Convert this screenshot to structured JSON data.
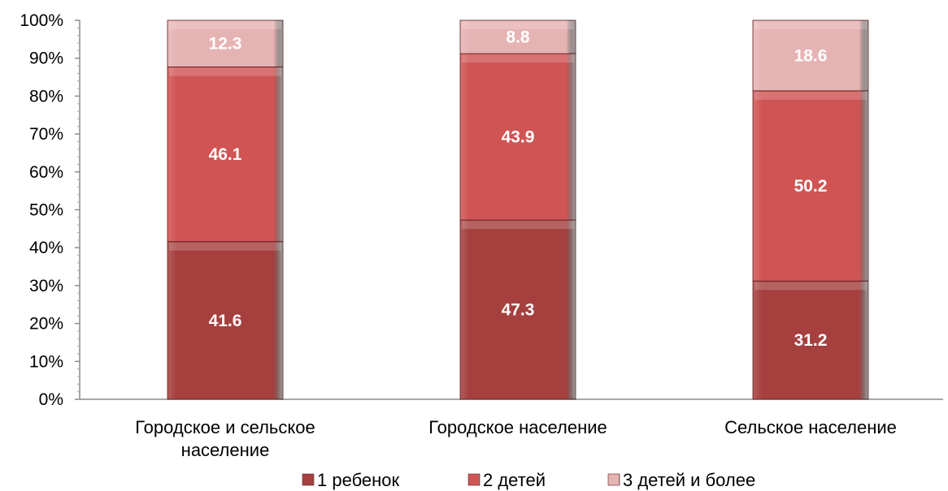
{
  "chart_data": {
    "type": "bar",
    "stacked": true,
    "normalized": true,
    "categories": [
      [
        "Городское и сельское",
        "население"
      ],
      [
        "Городское население"
      ],
      [
        "Сельское население"
      ]
    ],
    "series": [
      {
        "name": "1 ребенок",
        "values": [
          41.6,
          47.3,
          31.2
        ],
        "color": "#A5403F"
      },
      {
        "name": "2 детей",
        "values": [
          46.1,
          43.9,
          50.2
        ],
        "color": "#D15454"
      },
      {
        "name": "3 детей и более",
        "values": [
          12.3,
          8.8,
          18.6
        ],
        "color": "#E6B3B3"
      }
    ],
    "y_ticks": [
      "0%",
      "10%",
      "20%",
      "30%",
      "40%",
      "50%",
      "60%",
      "70%",
      "80%",
      "90%",
      "100%"
    ],
    "ylim": [
      0,
      100
    ],
    "grid": false,
    "legend_position": "bottom"
  }
}
